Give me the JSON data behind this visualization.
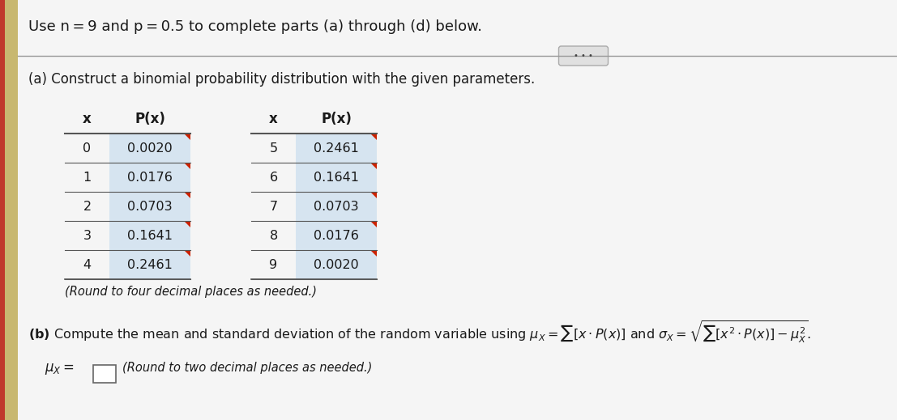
{
  "title": "Use n = 9 and p = 0.5 to complete parts (a) through (d) below.",
  "part_a_label": "(a) Construct a binomial probability distribution with the given parameters.",
  "round_note_a": "(Round to four decimal places as needed.)",
  "round_note_b": "(Round to two decimal places as needed.)",
  "table1": {
    "headers": [
      "x",
      "P(x)"
    ],
    "rows": [
      [
        "0",
        "0.0020"
      ],
      [
        "1",
        "0.0176"
      ],
      [
        "2",
        "0.0703"
      ],
      [
        "3",
        "0.1641"
      ],
      [
        "4",
        "0.2461"
      ]
    ]
  },
  "table2": {
    "headers": [
      "x",
      "P(x)"
    ],
    "rows": [
      [
        "5",
        "0.2461"
      ],
      [
        "6",
        "0.1641"
      ],
      [
        "7",
        "0.0703"
      ],
      [
        "8",
        "0.0176"
      ],
      [
        "9",
        "0.0020"
      ]
    ]
  },
  "bg_color": "#e8e8e8",
  "left_strip_color": "#c8b870",
  "left_strip2_color": "#c0392b",
  "cell_bg": "#d6e4f0",
  "header_bg": "#ffffff",
  "separator_line_color": "#999999",
  "text_color": "#1a1a1a",
  "table_line_color": "#555555",
  "btn_bg": "#e0e0e0",
  "btn_border": "#aaaaaa"
}
